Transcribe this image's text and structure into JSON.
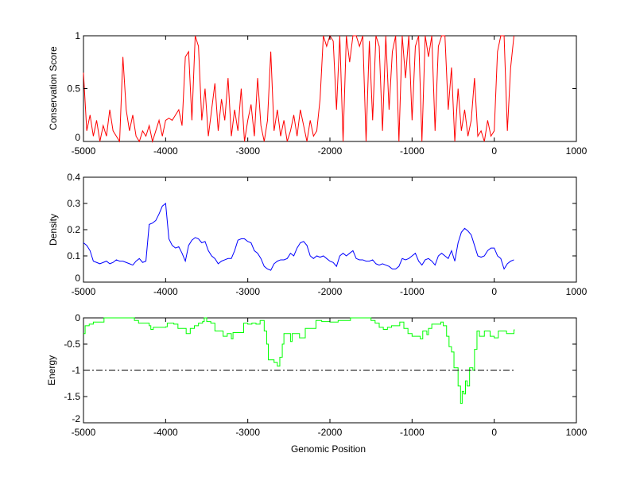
{
  "chart_data": [
    {
      "type": "line",
      "ylabel": "Conservation Score",
      "xlabel": "",
      "xlim": [
        -5000,
        1000
      ],
      "ylim": [
        0,
        1
      ],
      "xticks": [
        "-5000",
        "-4000",
        "-3000",
        "-2000",
        "-1000",
        "0",
        "1000"
      ],
      "yticks": [
        "0",
        "0.5",
        "1"
      ],
      "yticks_v": [
        0,
        0.5,
        1
      ],
      "color": "#ff0000",
      "x_start": -5000,
      "x_step": 40,
      "values": [
        0.65,
        0.1,
        0.25,
        0.05,
        0.2,
        0.0,
        0.15,
        0.05,
        0.3,
        0.1,
        0.05,
        0.0,
        0.8,
        0.3,
        0.1,
        0.25,
        0.05,
        0.0,
        0.1,
        0.05,
        0.15,
        0.0,
        0.1,
        0.2,
        0.05,
        0.2,
        0.22,
        0.2,
        0.25,
        0.3,
        0.15,
        0.8,
        0.85,
        0.2,
        1.0,
        0.9,
        0.2,
        0.5,
        0.05,
        0.3,
        0.55,
        0.1,
        0.4,
        0.2,
        0.6,
        0.05,
        0.3,
        0.1,
        0.5,
        0.0,
        0.2,
        0.35,
        0.05,
        0.6,
        0.15,
        0.0,
        0.2,
        0.85,
        0.1,
        0.3,
        0.05,
        0.2,
        0.0,
        0.1,
        0.25,
        0.05,
        0.3,
        0.15,
        0.0,
        0.2,
        0.05,
        0.1,
        0.4,
        1.0,
        0.9,
        1.0,
        0.95,
        0.3,
        1.0,
        0.0,
        1.0,
        0.75,
        1.0,
        1.0,
        0.9,
        1.0,
        0.0,
        0.95,
        0.2,
        1.0,
        0.9,
        0.1,
        1.0,
        0.3,
        0.85,
        1.0,
        0.0,
        1.0,
        0.6,
        1.0,
        0.2,
        0.9,
        1.0,
        0.0,
        1.0,
        0.8,
        1.0,
        0.1,
        0.9,
        1.0,
        1.0,
        0.3,
        0.7,
        0.0,
        0.5,
        0.1,
        0.3,
        0.05,
        0.2,
        0.6,
        0.05,
        0.1,
        0.0,
        0.2,
        0.05,
        0.1,
        0.85,
        1.0,
        1.0,
        0.1,
        0.7,
        1.0
      ]
    },
    {
      "type": "line",
      "ylabel": "Density",
      "xlabel": "",
      "xlim": [
        -5000,
        1000
      ],
      "ylim": [
        0,
        0.4
      ],
      "xticks": [
        "-5000",
        "-4000",
        "-3000",
        "-2000",
        "-1000",
        "0",
        "1000"
      ],
      "yticks": [
        "0",
        "0.1",
        "0.2",
        "0.3",
        "0.4"
      ],
      "yticks_v": [
        0,
        0.1,
        0.2,
        0.3,
        0.4
      ],
      "color": "#0000ff",
      "x_start": -5000,
      "x_step": 40,
      "values": [
        0.15,
        0.14,
        0.12,
        0.08,
        0.075,
        0.07,
        0.075,
        0.08,
        0.07,
        0.075,
        0.085,
        0.08,
        0.08,
        0.075,
        0.07,
        0.065,
        0.08,
        0.09,
        0.075,
        0.08,
        0.22,
        0.225,
        0.235,
        0.26,
        0.29,
        0.3,
        0.165,
        0.14,
        0.13,
        0.135,
        0.11,
        0.08,
        0.14,
        0.16,
        0.17,
        0.165,
        0.15,
        0.155,
        0.12,
        0.1,
        0.09,
        0.07,
        0.08,
        0.085,
        0.09,
        0.09,
        0.12,
        0.16,
        0.165,
        0.165,
        0.155,
        0.15,
        0.12,
        0.11,
        0.09,
        0.06,
        0.05,
        0.045,
        0.07,
        0.08,
        0.085,
        0.085,
        0.09,
        0.11,
        0.1,
        0.13,
        0.15,
        0.155,
        0.14,
        0.1,
        0.09,
        0.1,
        0.095,
        0.1,
        0.09,
        0.08,
        0.075,
        0.06,
        0.1,
        0.11,
        0.1,
        0.11,
        0.12,
        0.09,
        0.085,
        0.085,
        0.08,
        0.08,
        0.085,
        0.07,
        0.065,
        0.07,
        0.065,
        0.06,
        0.05,
        0.05,
        0.06,
        0.09,
        0.085,
        0.09,
        0.1,
        0.11,
        0.08,
        0.065,
        0.085,
        0.09,
        0.08,
        0.065,
        0.1,
        0.11,
        0.1,
        0.09,
        0.12,
        0.08,
        0.15,
        0.19,
        0.205,
        0.195,
        0.18,
        0.14,
        0.1,
        0.095,
        0.1,
        0.12,
        0.13,
        0.13,
        0.1,
        0.09,
        0.05,
        0.07,
        0.08,
        0.085
      ]
    },
    {
      "type": "line",
      "ylabel": "Energy",
      "xlabel": "Genomic Position",
      "xlim": [
        -5000,
        1000
      ],
      "ylim": [
        -2,
        0
      ],
      "xticks": [
        "-5000",
        "-4000",
        "-3000",
        "-2000",
        "-1000",
        "0",
        "1000"
      ],
      "yticks": [
        "-2",
        "-1.5",
        "-1",
        "-0.5",
        "0"
      ],
      "yticks_v": [
        -2,
        -1.5,
        -1,
        -0.5,
        0
      ],
      "color": "#00ff00",
      "step": true,
      "x": [
        -5000,
        -4980,
        -4930,
        -4880,
        -4750,
        -4380,
        -4330,
        -4200,
        -4180,
        -4150,
        -4000,
        -3980,
        -3900,
        -3850,
        -3750,
        -3700,
        -3650,
        -3600,
        -3550,
        -3530,
        -3500,
        -3450,
        -3400,
        -3300,
        -3250,
        -3200,
        -3180,
        -3100,
        -3050,
        -3000,
        -2950,
        -2900,
        -2850,
        -2800,
        -2770,
        -2750,
        -2680,
        -2640,
        -2610,
        -2580,
        -2560,
        -2500,
        -2480,
        -2460,
        -2400,
        -2370,
        -2300,
        -2200,
        -2170,
        -2100,
        -2000,
        -1900,
        -1750,
        -1500,
        -1450,
        -1400,
        -1350,
        -1300,
        -1250,
        -1150,
        -1100,
        -1050,
        -1000,
        -900,
        -870,
        -820,
        -800,
        -760,
        -650,
        -620,
        -580,
        -550,
        -520,
        -490,
        -440,
        -410,
        -390,
        -370,
        -350,
        -330,
        -300,
        -260,
        -240,
        -210,
        -180,
        -120,
        -50,
        0,
        50,
        150,
        240
      ],
      "values": [
        -0.3,
        -0.15,
        -0.12,
        -0.08,
        0,
        -0.05,
        -0.1,
        -0.15,
        -0.22,
        -0.18,
        -0.17,
        -0.1,
        -0.12,
        -0.2,
        -0.3,
        -0.2,
        -0.15,
        -0.1,
        -0.07,
        0,
        -0.07,
        -0.1,
        -0.25,
        -0.35,
        -0.3,
        -0.4,
        -0.28,
        -0.28,
        -0.1,
        -0.12,
        -0.1,
        -0.12,
        -0.05,
        -0.25,
        -0.5,
        -0.8,
        -0.85,
        -0.92,
        -0.75,
        -0.5,
        -0.3,
        -0.3,
        -0.45,
        -0.3,
        -0.3,
        -0.38,
        -0.2,
        -0.2,
        -0.05,
        -0.07,
        -0.08,
        -0.05,
        0,
        -0.05,
        -0.1,
        -0.18,
        -0.22,
        -0.18,
        -0.15,
        -0.08,
        -0.2,
        -0.3,
        -0.35,
        -0.4,
        -0.25,
        -0.32,
        -0.2,
        -0.12,
        -0.08,
        -0.15,
        -0.35,
        -0.55,
        -0.65,
        -0.95,
        -1.3,
        -1.63,
        -1.4,
        -1.45,
        -1.2,
        -1.3,
        -0.95,
        -1.0,
        -0.6,
        -0.25,
        -0.35,
        -0.25,
        -0.35,
        -0.38,
        -0.25,
        -0.3,
        -0.23
      ],
      "threshold": {
        "y": -1,
        "x": [
          -5000,
          240
        ],
        "style": "dash-dot",
        "color": "#000000"
      }
    }
  ]
}
